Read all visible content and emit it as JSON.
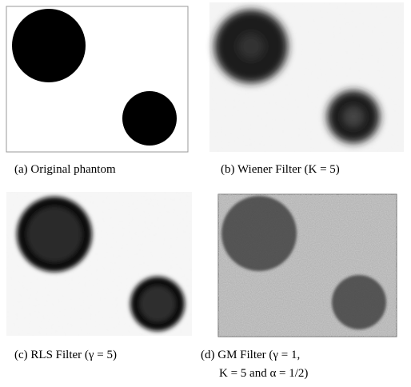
{
  "figure": {
    "panels": [
      {
        "label": "(a)",
        "caption_lines": [
          "Original phantom"
        ]
      },
      {
        "label": "(b)",
        "caption_lines": [
          "Wiener Filter (K = 5)"
        ]
      },
      {
        "label": "(c)",
        "caption_lines": [
          "RLS Filter (γ = 5)"
        ]
      },
      {
        "label": "(d)",
        "caption_lines": [
          "GM Filter (γ = 1,",
          "K = 5 and α = 1/2)"
        ]
      }
    ]
  }
}
